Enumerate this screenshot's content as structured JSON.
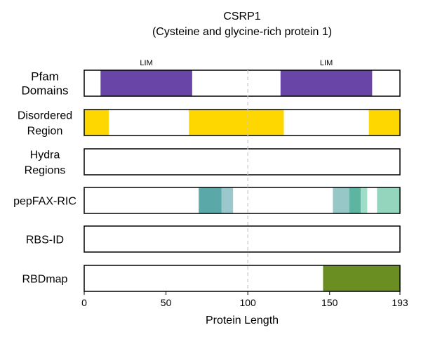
{
  "chart_data": {
    "type": "bar",
    "title": "CSRP1",
    "subtitle": "(Cysteine and glycine-rich protein 1)",
    "xlabel": "Protein Length",
    "xlim": [
      0,
      193
    ],
    "xticks": [
      0,
      50,
      100,
      150,
      193
    ],
    "reference_line_x": 100,
    "tracks": [
      {
        "label_lines": [
          "Pfam",
          "Domains"
        ],
        "segments": [
          {
            "start": 10,
            "end": 66,
            "color": "#6a45a8",
            "label": "LIM"
          },
          {
            "start": 120,
            "end": 176,
            "color": "#6a45a8",
            "label": "LIM"
          }
        ]
      },
      {
        "label_lines": [
          "Disordered",
          "Region"
        ],
        "segments": [
          {
            "start": 0,
            "end": 15,
            "color": "#ffd700"
          },
          {
            "start": 64,
            "end": 122,
            "color": "#ffd700"
          },
          {
            "start": 174,
            "end": 193,
            "color": "#ffd700"
          }
        ]
      },
      {
        "label_lines": [
          "Hydra",
          "Regions"
        ],
        "segments": []
      },
      {
        "label_lines": [
          "pepFAX-RIC"
        ],
        "segments": [
          {
            "start": 70,
            "end": 84,
            "color": "#5ba8a8"
          },
          {
            "start": 84,
            "end": 91,
            "color": "#9ac8cc"
          },
          {
            "start": 152,
            "end": 162,
            "color": "#97c7c6"
          },
          {
            "start": 162,
            "end": 169,
            "color": "#5cb5a0"
          },
          {
            "start": 169,
            "end": 173,
            "color": "#9fddc8"
          },
          {
            "start": 179,
            "end": 193,
            "color": "#93d5bd"
          }
        ]
      },
      {
        "label_lines": [
          "RBS-ID"
        ],
        "segments": []
      },
      {
        "label_lines": [
          "RBDmap"
        ],
        "segments": [
          {
            "start": 146,
            "end": 193,
            "color": "#6b8e23"
          }
        ]
      }
    ]
  }
}
